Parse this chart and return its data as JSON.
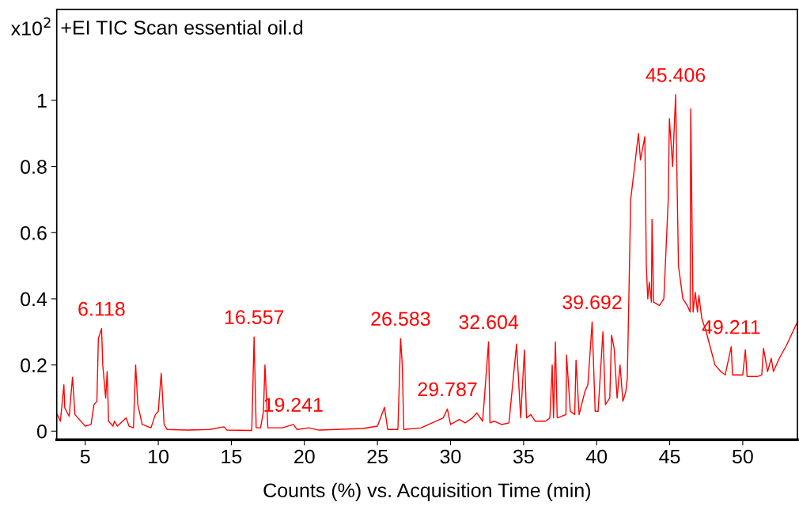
{
  "chart_data": {
    "type": "line",
    "xlabel": "Counts (%) vs. Acquisition Time (min)",
    "ylabel": "x10$^{2}$",
    "xlim": [
      3.05,
      53.74
    ],
    "ylim": [
      -0.026,
      1.275
    ],
    "xticks": [
      5,
      10,
      15,
      20,
      25,
      30,
      35,
      40,
      45,
      50
    ],
    "yticks": [
      0,
      0.2,
      0.4,
      0.6,
      0.8,
      1
    ],
    "grid": false,
    "legend": false,
    "marker": "none",
    "line_style": "solid",
    "series": [
      {
        "color": "#ff0000",
        "x": [
          3.05,
          3.3,
          3.54,
          3.6,
          3.9,
          4.13,
          4.3,
          4.8,
          5.0,
          5.4,
          5.6,
          5.8,
          5.9,
          6.118,
          6.2,
          6.4,
          6.5,
          6.6,
          6.9,
          7.0,
          7.2,
          7.8,
          8.0,
          8.3,
          8.45,
          8.6,
          8.9,
          9.5,
          9.8,
          10.0,
          10.2,
          10.4,
          10.6,
          12.0,
          13.5,
          14.5,
          14.7,
          16.4,
          16.557,
          16.7,
          17.0,
          17.2,
          17.3,
          17.5,
          18.5,
          19.241,
          19.5,
          20.3,
          21.0,
          24.0,
          25.0,
          25.48,
          25.7,
          26.4,
          26.583,
          26.7,
          26.8,
          28.0,
          28.5,
          29.5,
          29.787,
          30.0,
          30.6,
          31.0,
          31.5,
          31.8,
          32.2,
          32.604,
          32.7,
          33.0,
          33.5,
          34.0,
          34.52,
          34.8,
          35.06,
          35.2,
          35.5,
          35.8,
          36.5,
          36.8,
          36.96,
          37.05,
          37.18,
          37.3,
          37.9,
          37.94,
          38.2,
          38.5,
          38.59,
          38.8,
          39.2,
          39.4,
          39.692,
          39.9,
          40.1,
          40.43,
          40.6,
          40.9,
          41.02,
          41.2,
          41.4,
          41.6,
          41.8,
          42.0,
          42.1,
          42.2,
          42.33,
          42.6,
          42.86,
          43.0,
          43.3,
          43.4,
          43.5,
          43.6,
          43.75,
          43.79,
          43.9,
          44.3,
          44.6,
          44.9,
          44.98,
          45.2,
          45.406,
          45.6,
          45.9,
          46.2,
          46.4,
          46.44,
          46.6,
          46.75,
          46.9,
          47.0,
          47.2,
          47.5,
          47.8,
          48.1,
          48.5,
          48.8,
          49.211,
          49.3,
          49.6,
          50.0,
          50.18,
          50.3,
          51.0,
          51.3,
          51.42,
          51.7,
          51.95,
          52.1,
          52.5,
          53.0,
          53.74
        ],
        "values": [
          0.053,
          0.03,
          0.14,
          0.07,
          0.045,
          0.163,
          0.05,
          0.025,
          0.015,
          0.02,
          0.08,
          0.09,
          0.28,
          0.31,
          0.2,
          0.1,
          0.18,
          0.03,
          0.015,
          0.03,
          0.015,
          0.04,
          0.015,
          0.01,
          0.2,
          0.08,
          0.02,
          0.01,
          0.05,
          0.06,
          0.175,
          0.02,
          0.005,
          0.003,
          0.005,
          0.013,
          0.003,
          0.002,
          0.285,
          0.01,
          0.01,
          0.06,
          0.2,
          0.01,
          0.01,
          0.02,
          0.005,
          0.01,
          0.003,
          0.008,
          0.015,
          0.072,
          0.005,
          0.005,
          0.28,
          0.2,
          0.005,
          0.01,
          0.02,
          0.04,
          0.067,
          0.02,
          0.035,
          0.025,
          0.04,
          0.055,
          0.03,
          0.27,
          0.025,
          0.03,
          0.02,
          0.025,
          0.263,
          0.04,
          0.245,
          0.04,
          0.05,
          0.03,
          0.03,
          0.04,
          0.2,
          0.04,
          0.27,
          0.04,
          0.05,
          0.23,
          0.06,
          0.05,
          0.215,
          0.05,
          0.12,
          0.14,
          0.33,
          0.06,
          0.06,
          0.3,
          0.08,
          0.1,
          0.29,
          0.25,
          0.1,
          0.2,
          0.09,
          0.12,
          0.16,
          0.39,
          0.7,
          0.8,
          0.9,
          0.82,
          0.89,
          0.5,
          0.4,
          0.45,
          0.39,
          0.64,
          0.39,
          0.38,
          0.4,
          0.7,
          0.945,
          0.8,
          1.017,
          0.5,
          0.4,
          0.38,
          0.36,
          0.974,
          0.36,
          0.42,
          0.36,
          0.41,
          0.34,
          0.3,
          0.25,
          0.2,
          0.18,
          0.17,
          0.255,
          0.17,
          0.17,
          0.17,
          0.246,
          0.165,
          0.165,
          0.17,
          0.25,
          0.18,
          0.22,
          0.18,
          0.22,
          0.26,
          0.33
        ]
      }
    ],
    "annotations": [
      "+EI TIC Scan essential oil.d",
      {
        "text": "6.118",
        "x": 6.118,
        "y": 0.31
      },
      {
        "text": "16.557",
        "x": 16.557,
        "y": 0.285
      },
      {
        "text": "19.241",
        "x": 19.241,
        "y": 0.02
      },
      {
        "text": "26.583",
        "x": 26.583,
        "y": 0.28
      },
      {
        "text": "29.787",
        "x": 29.787,
        "y": 0.067
      },
      {
        "text": "32.604",
        "x": 32.604,
        "y": 0.27
      },
      {
        "text": "39.692",
        "x": 39.692,
        "y": 0.33
      },
      {
        "text": "45.406",
        "x": 45.406,
        "y": 1.017
      },
      {
        "text": "49.211",
        "x": 49.211,
        "y": 0.255
      }
    ]
  }
}
